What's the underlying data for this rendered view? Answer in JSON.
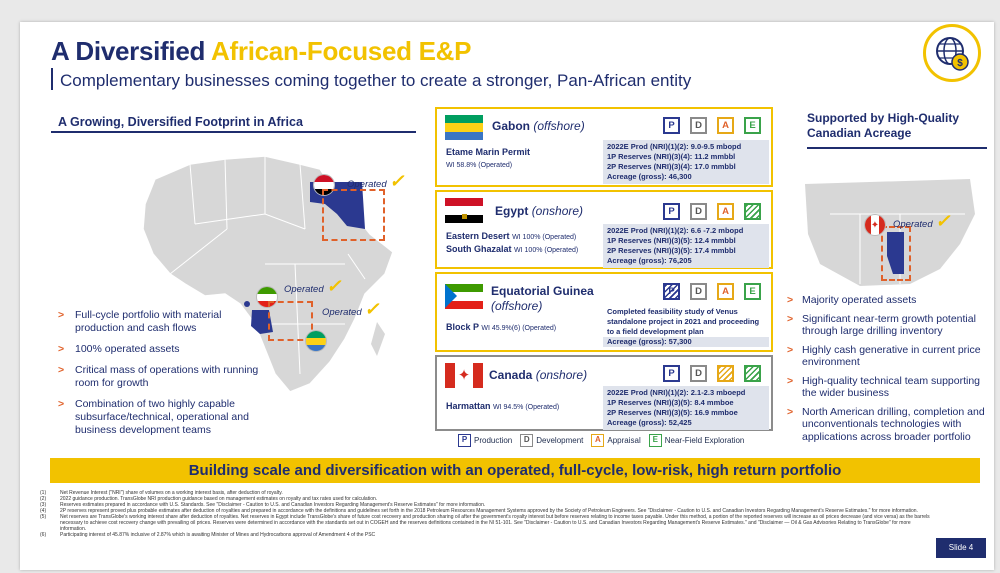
{
  "title": {
    "part1": "A Diversified ",
    "part2": "African-Focused E&P"
  },
  "subtitle": "Complementary businesses coming together to create a stronger, Pan-African entity",
  "left": {
    "heading": "A Growing, Diversified Footprint in Africa",
    "operated_labels": [
      "Operated",
      "Operated",
      "Operated"
    ],
    "check": "✓",
    "bullets": [
      "Full-cycle portfolio with material production and cash flows",
      "100% operated assets",
      "Critical mass of operations with running room for growth",
      "Combination of two highly capable subsurface/technical, operational and business development teams"
    ]
  },
  "cards": [
    {
      "country": "Gabon",
      "location": "(offshore)",
      "phases": [
        "P",
        "D",
        "A",
        "E"
      ],
      "asset": "Etame Marin Permit",
      "wi": "WI 58.8% (Operated)",
      "stats": [
        "2022E Prod (NRI)(1)(2): 9.0-9.5 mbopd",
        "1P Reserves (NRI)(3)(4): 11.2 mmbbl",
        "2P Reserves (NRI)(3)(4): 17.0 mmbbl",
        "Acreage (gross): 46,300"
      ]
    },
    {
      "country": "Egypt",
      "location": "(onshore)",
      "phases": [
        "P",
        "D",
        "A",
        "E"
      ],
      "asset": "Eastern Desert",
      "wi": "WI 100% (Operated)",
      "asset2": "South Ghazalat",
      "wi2": "WI 100% (Operated)",
      "stats": [
        "2022E Prod (NRI)(1)(2): 6.6 -7.2 mbopd",
        "1P Reserves (NRI)(3)(5): 12.4 mmbbl",
        "2P Reserves (NRI)(3)(5): 17.4 mmbbl",
        "Acreage (gross): 76,205"
      ]
    },
    {
      "country": "Equatorial Guinea",
      "location": "(offshore)",
      "phases": [
        "P",
        "D",
        "A",
        "E"
      ],
      "asset": "Block P",
      "wi": "WI 45.9%(6) (Operated)",
      "stats": [
        "Completed feasibility study of Venus",
        "standalone project in 2021 and proceeding",
        "to a field development plan",
        "Acreage (gross): 57,300"
      ]
    },
    {
      "country": "Canada",
      "location": "(onshore)",
      "phases": [
        "P",
        "D",
        "A",
        "E"
      ],
      "asset": "Harmattan",
      "wi": "WI 94.5% (Operated)",
      "stats": [
        "2022E Prod (NRI)(1)(2): 2.1-2.3 mboepd",
        "1P Reserves (NRI)(3)(5): 8.4 mmboe",
        "2P Reserves (NRI)(3)(5): 16.9 mmboe",
        "Acreage (gross): 52,425"
      ]
    }
  ],
  "legend": [
    {
      "key": "P",
      "label": "Production"
    },
    {
      "key": "D",
      "label": "Development"
    },
    {
      "key": "A",
      "label": "Appraisal"
    },
    {
      "key": "E",
      "label": "Near-Field Exploration"
    }
  ],
  "right": {
    "heading": "Supported by High-Quality Canadian Acreage",
    "operated_label": "Operated",
    "bullets": [
      "Majority operated assets",
      "Significant near-term growth potential through large drilling inventory",
      "Highly cash generative in current price environment",
      "High-quality technical team supporting the wider business",
      "North American drilling, completion and unconventionals technologies with applications across broader portfolio"
    ]
  },
  "banner": "Building scale and diversification with an operated, full-cycle, low-risk, high return portfolio",
  "footnotes": [
    {
      "n": "(1)",
      "t": "Net Revenue Interest (\"NRI\") share of volumes on a working interest basis, after deduction of royalty."
    },
    {
      "n": "(2)",
      "t": "2022 guidance production. TransGlobe NRI production guidance based on management estimates on royalty and tax rates used for calculation."
    },
    {
      "n": "(3)",
      "t": "Reserves estimates prepared in accordance with U.S. Standards. See \"Disclaimer - Caution to U.S. and Canadian Investors Regarding Management's Reserve Estimates\" for more information."
    },
    {
      "n": "(4)",
      "t": "2P reserves represent proved plus probable estimates after deduction of royalties and prepared in accordance with the definitions and guidelines set forth in the 2018 Petroleum Resources Management Systems approved by the Society of Petroleum Engineers. See \"Disclaimer - Caution to U.S. and Canadian Investors Regarding Management's Reserve Estimates.\" for more information."
    },
    {
      "n": "(5)",
      "t": "Net reserves are TransGlobe's working interest share after deduction of royalties. Net reserves in Egypt include TransGlobe's share of future cost recovery and production sharing oil after the government's royalty interest but before reserves relating to income taxes payable. Under this method, a portion of the reported reserves will increase as oil prices decrease (and vice versa) as the barrels necessary to achieve cost recovery change with prevailing oil prices. Reserves were determined in accordance with the standards set out in COGEH and the reserves definitions contained in the NI 51-101. See \"Disclaimer - Caution to U.S. and Canadian Investors Regarding Management's Reserve Estimates.\" and \"Disclaimer — Oil & Gas Advisories Relating to TransGlobe\" for more information."
    },
    {
      "n": "(6)",
      "t": "Participating interest of 45.87% inclusive of 2.87% which is awaiting Minister of Mines and Hydrocarbons approval of Amendment 4 of the PSC"
    }
  ],
  "slide_number": "Slide 4",
  "colors": {
    "navy": "#1f2d6e",
    "yellow": "#f2c200",
    "orange": "#e0612a",
    "green": "#3aa34a"
  }
}
